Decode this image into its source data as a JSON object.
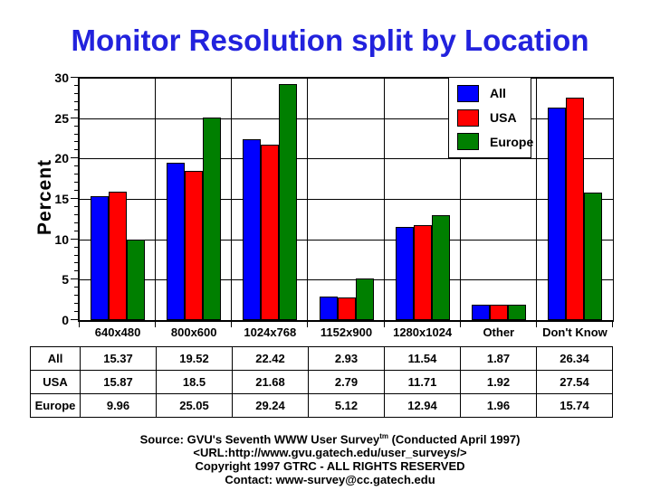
{
  "chart_data": {
    "type": "bar",
    "title": "Monitor Resolution split by Location",
    "xlabel": "",
    "ylabel": "Percent",
    "ylim": [
      0,
      30
    ],
    "ytick_step": 5,
    "ytick_minor_step": 1,
    "grid": true,
    "legend_position": "inside-top-right",
    "categories": [
      "640x480",
      "800x600",
      "1024x768",
      "1152x900",
      "1280x1024",
      "Other",
      "Don't Know"
    ],
    "series": [
      {
        "name": "All",
        "color": "#0000FF",
        "values": [
          15.37,
          19.52,
          22.42,
          2.93,
          11.54,
          1.87,
          26.34
        ]
      },
      {
        "name": "USA",
        "color": "#FF0000",
        "values": [
          15.87,
          18.5,
          21.68,
          2.79,
          11.71,
          1.92,
          27.54
        ]
      },
      {
        "name": "Europe",
        "color": "#007F00",
        "values": [
          9.96,
          25.05,
          29.24,
          5.12,
          12.94,
          1.96,
          15.74
        ]
      }
    ]
  },
  "table": {
    "row_labels": [
      "All",
      "USA",
      "Europe"
    ],
    "columns": [
      "640x480",
      "800x600",
      "1024x768",
      "1152x900",
      "1280x1024",
      "Other",
      "Don't Know"
    ],
    "rows": [
      [
        "15.37",
        "19.52",
        "22.42",
        "2.93",
        "11.54",
        "1.87",
        "26.34"
      ],
      [
        "15.87",
        "18.5",
        "21.68",
        "2.79",
        "11.71",
        "1.92",
        "27.54"
      ],
      [
        "9.96",
        "25.05",
        "29.24",
        "5.12",
        "12.94",
        "1.96",
        "15.74"
      ]
    ]
  },
  "footer": {
    "source_text": "Source: GVU's Seventh WWW User Survey",
    "source_sup": "tm",
    "source_suffix": " (Conducted April 1997)",
    "url": "<URL:http://www.gvu.gatech.edu/user_surveys/>",
    "copyright": "Copyright 1997 GTRC - ALL RIGHTS RESERVED",
    "contact": "Contact: www-survey@cc.gatech.edu"
  },
  "colors": {
    "title": "#2222DD",
    "axis": "#000000",
    "background": "#FFFFFF"
  }
}
